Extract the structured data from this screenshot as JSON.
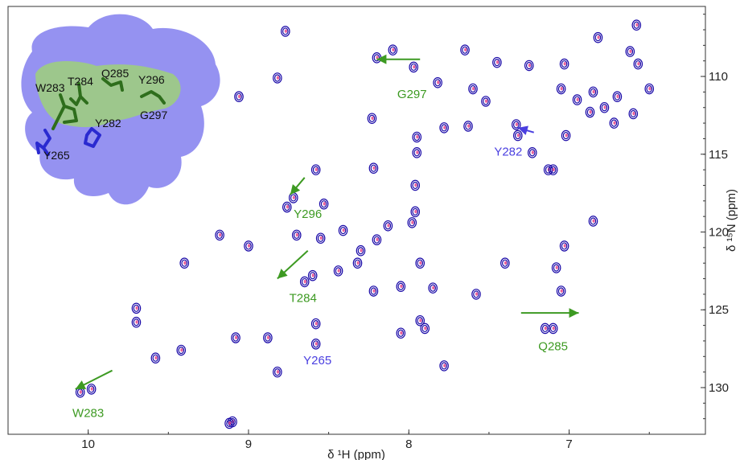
{
  "colors": {
    "peak_primary": "#1a0aa8",
    "peak_secondary": "#e0307a",
    "annot_green": "#3d9a22",
    "annot_blue": "#4a3fe0",
    "inset_surface": "#8f8cf0",
    "inset_patch": "#9fd07a",
    "stick_green": "#2e6e1c",
    "stick_blue": "#2a2ad0"
  },
  "chart_data": {
    "type": "scatter",
    "title": "",
    "xlabel": "δ ¹H (ppm)",
    "ylabel": "δ ¹⁵N (ppm)",
    "xlim": [
      10.5,
      6.15
    ],
    "ylim": [
      133.0,
      105.5
    ],
    "x_reversed": true,
    "y_reversed": true,
    "xticks": [
      "10",
      "9",
      "8",
      "7"
    ],
    "yticks": [
      "110",
      "115",
      "120",
      "125",
      "130"
    ],
    "grid": false,
    "peaks": [
      {
        "x": 8.77,
        "y": 107.1
      },
      {
        "x": 6.82,
        "y": 107.5
      },
      {
        "x": 6.58,
        "y": 106.7
      },
      {
        "x": 6.62,
        "y": 108.4
      },
      {
        "x": 8.1,
        "y": 108.3
      },
      {
        "x": 8.2,
        "y": 108.8
      },
      {
        "x": 7.65,
        "y": 108.3
      },
      {
        "x": 7.45,
        "y": 109.1
      },
      {
        "x": 7.97,
        "y": 109.4
      },
      {
        "x": 7.25,
        "y": 109.3
      },
      {
        "x": 7.03,
        "y": 109.2
      },
      {
        "x": 6.57,
        "y": 109.2
      },
      {
        "x": 8.82,
        "y": 110.1
      },
      {
        "x": 7.82,
        "y": 110.4
      },
      {
        "x": 7.6,
        "y": 110.8
      },
      {
        "x": 7.05,
        "y": 110.8
      },
      {
        "x": 6.85,
        "y": 111.0
      },
      {
        "x": 6.5,
        "y": 110.8
      },
      {
        "x": 6.95,
        "y": 111.5
      },
      {
        "x": 6.7,
        "y": 111.3
      },
      {
        "x": 6.78,
        "y": 112.0
      },
      {
        "x": 6.6,
        "y": 112.4
      },
      {
        "x": 6.87,
        "y": 112.3
      },
      {
        "x": 9.06,
        "y": 111.3
      },
      {
        "x": 7.52,
        "y": 111.6
      },
      {
        "x": 7.33,
        "y": 113.1
      },
      {
        "x": 7.32,
        "y": 113.8
      },
      {
        "x": 7.23,
        "y": 114.9
      },
      {
        "x": 7.13,
        "y": 116.0
      },
      {
        "x": 6.72,
        "y": 113.0
      },
      {
        "x": 7.02,
        "y": 113.8
      },
      {
        "x": 8.23,
        "y": 112.7
      },
      {
        "x": 7.95,
        "y": 113.9
      },
      {
        "x": 7.78,
        "y": 113.3
      },
      {
        "x": 7.63,
        "y": 113.2
      },
      {
        "x": 7.95,
        "y": 114.9
      },
      {
        "x": 8.58,
        "y": 116.0
      },
      {
        "x": 8.22,
        "y": 115.9
      },
      {
        "x": 7.96,
        "y": 117.0
      },
      {
        "x": 8.76,
        "y": 118.4
      },
      {
        "x": 8.72,
        "y": 117.8
      },
      {
        "x": 8.53,
        "y": 118.2
      },
      {
        "x": 7.96,
        "y": 118.7
      },
      {
        "x": 8.13,
        "y": 119.6
      },
      {
        "x": 7.98,
        "y": 119.4
      },
      {
        "x": 8.7,
        "y": 120.2
      },
      {
        "x": 8.55,
        "y": 120.4
      },
      {
        "x": 8.41,
        "y": 119.9
      },
      {
        "x": 9.18,
        "y": 120.2
      },
      {
        "x": 9.0,
        "y": 120.9
      },
      {
        "x": 8.3,
        "y": 121.2
      },
      {
        "x": 8.2,
        "y": 120.5
      },
      {
        "x": 7.1,
        "y": 116.0
      },
      {
        "x": 6.85,
        "y": 119.3
      },
      {
        "x": 7.03,
        "y": 120.9
      },
      {
        "x": 9.4,
        "y": 122.0
      },
      {
        "x": 8.32,
        "y": 122.0
      },
      {
        "x": 7.93,
        "y": 122.0
      },
      {
        "x": 7.4,
        "y": 122.0
      },
      {
        "x": 7.08,
        "y": 122.3
      },
      {
        "x": 8.65,
        "y": 123.2
      },
      {
        "x": 8.6,
        "y": 122.8
      },
      {
        "x": 8.22,
        "y": 123.8
      },
      {
        "x": 7.85,
        "y": 123.6
      },
      {
        "x": 7.58,
        "y": 124.0
      },
      {
        "x": 7.05,
        "y": 123.8
      },
      {
        "x": 8.44,
        "y": 122.5
      },
      {
        "x": 8.05,
        "y": 123.5
      },
      {
        "x": 9.7,
        "y": 124.9
      },
      {
        "x": 9.7,
        "y": 125.8
      },
      {
        "x": 8.58,
        "y": 125.9
      },
      {
        "x": 7.93,
        "y": 125.7
      },
      {
        "x": 7.9,
        "y": 126.2
      },
      {
        "x": 8.05,
        "y": 126.5
      },
      {
        "x": 7.15,
        "y": 126.2
      },
      {
        "x": 7.1,
        "y": 126.2
      },
      {
        "x": 9.08,
        "y": 126.8
      },
      {
        "x": 8.88,
        "y": 126.8
      },
      {
        "x": 8.58,
        "y": 127.2
      },
      {
        "x": 9.42,
        "y": 127.6
      },
      {
        "x": 9.58,
        "y": 128.1
      },
      {
        "x": 7.78,
        "y": 128.6
      },
      {
        "x": 8.82,
        "y": 129.0
      },
      {
        "x": 10.05,
        "y": 130.3
      },
      {
        "x": 9.98,
        "y": 130.1
      },
      {
        "x": 9.1,
        "y": 132.2
      },
      {
        "x": 9.12,
        "y": 132.3
      }
    ],
    "annotations": [
      {
        "label": "G297",
        "color": "green",
        "x": 7.98,
        "y": 111.4,
        "arrow": [
          [
            7.93,
            108.9
          ],
          [
            8.2,
            108.9
          ]
        ]
      },
      {
        "label": "Y282",
        "color": "blue",
        "x": 7.38,
        "y": 115.1,
        "arrow": [
          [
            7.22,
            113.6
          ],
          [
            7.32,
            113.3
          ]
        ]
      },
      {
        "label": "Y296",
        "color": "green",
        "x": 8.63,
        "y": 119.1,
        "arrow": [
          [
            8.65,
            116.5
          ],
          [
            8.74,
            117.6
          ]
        ]
      },
      {
        "label": "T284",
        "color": "green",
        "x": 8.66,
        "y": 124.5,
        "arrow": [
          [
            8.63,
            121.2
          ],
          [
            8.82,
            123.0
          ]
        ]
      },
      {
        "label": "Y265",
        "color": "blue",
        "x": 8.57,
        "y": 128.5,
        "arrow": null
      },
      {
        "label": "Q285",
        "color": "green",
        "x": 7.1,
        "y": 127.6,
        "arrow": [
          [
            7.3,
            125.2
          ],
          [
            6.94,
            125.2
          ]
        ]
      },
      {
        "label": "W283",
        "color": "green",
        "x": 10.0,
        "y": 131.9,
        "arrow": [
          [
            9.85,
            128.9
          ],
          [
            10.08,
            130.1
          ]
        ]
      }
    ]
  },
  "inset": {
    "labels": [
      "W283",
      "T284",
      "Q285",
      "Y296",
      "Y282",
      "G297",
      "Y265"
    ],
    "label_colors": [
      "dark",
      "dark",
      "dark",
      "dark",
      "dark",
      "dark",
      "dark"
    ]
  }
}
